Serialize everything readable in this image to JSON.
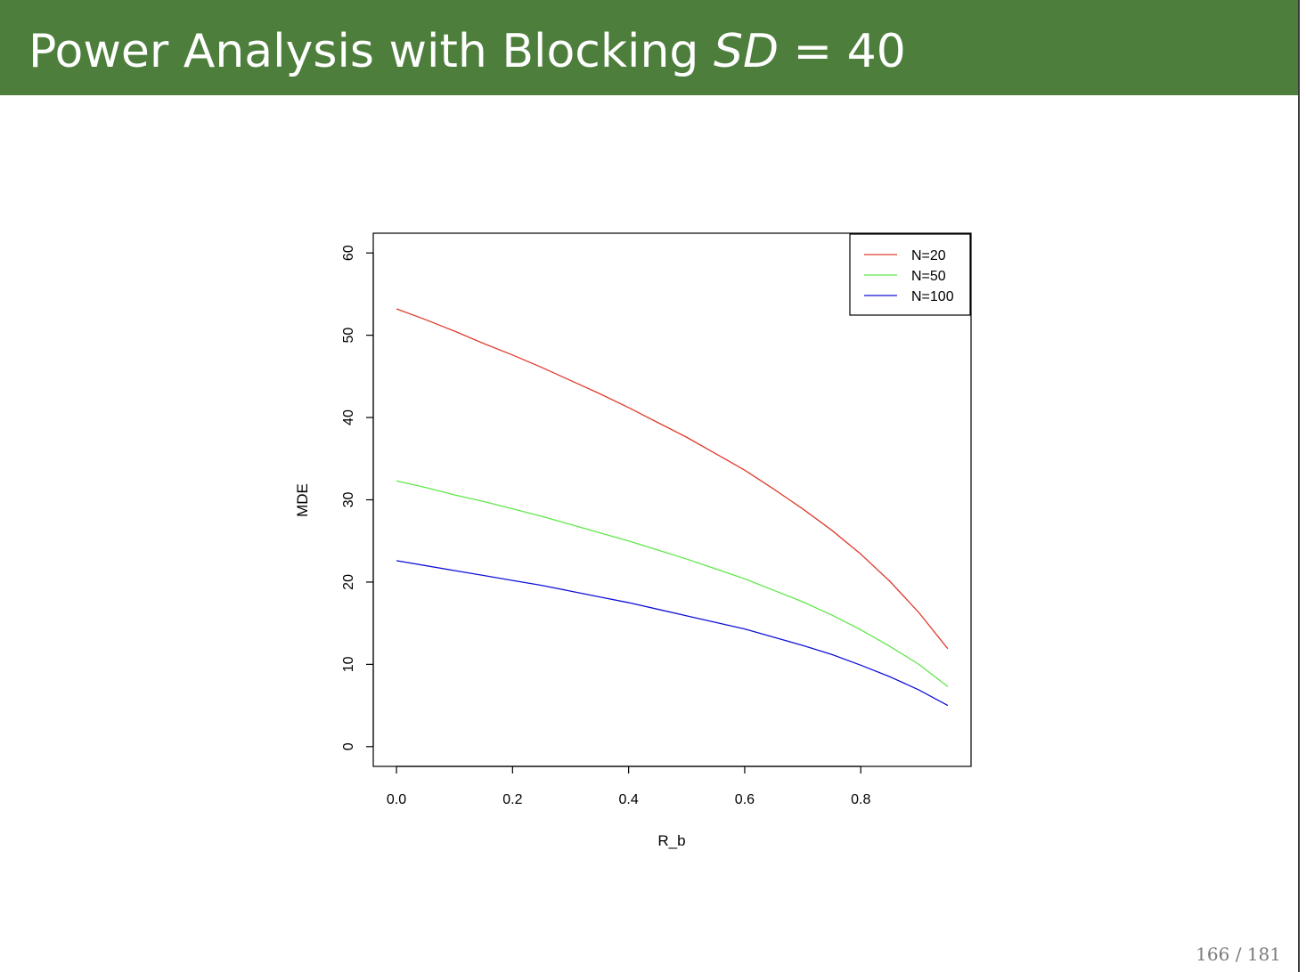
{
  "slide": {
    "title_prefix": "Power Analysis with Blocking ",
    "title_math": "SD",
    "title_suffix": " = 40",
    "page_current": "166",
    "page_separator": "/",
    "page_total": "181"
  },
  "chart_data": {
    "type": "line",
    "xlabel": "R_b",
    "ylabel": "MDE",
    "xlim": [
      -0.04,
      0.99
    ],
    "ylim": [
      -2.4,
      62.4
    ],
    "xticks": [
      0.0,
      0.2,
      0.4,
      0.6,
      0.8
    ],
    "xtick_labels": [
      "0.0",
      "0.2",
      "0.4",
      "0.6",
      "0.8"
    ],
    "yticks": [
      0,
      10,
      20,
      30,
      40,
      50,
      60
    ],
    "ytick_labels": [
      "0",
      "10",
      "20",
      "30",
      "40",
      "50",
      "60"
    ],
    "grid": false,
    "legend_position": "top-right",
    "x": [
      0,
      0.05,
      0.1,
      0.15,
      0.2,
      0.25,
      0.3,
      0.35,
      0.4,
      0.45,
      0.5,
      0.55,
      0.6,
      0.65,
      0.7,
      0.75,
      0.8,
      0.85,
      0.9,
      0.95
    ],
    "series": [
      {
        "name": "N=20",
        "color": "#df3a2e",
        "values": [
          53.2,
          51.9,
          50.5,
          49.0,
          47.6,
          46.1,
          44.5,
          42.9,
          41.2,
          39.4,
          37.6,
          35.6,
          33.6,
          31.3,
          28.9,
          26.3,
          23.4,
          20.1,
          16.3,
          11.9
        ]
      },
      {
        "name": "N=50",
        "color": "#5fe849",
        "values": [
          32.3,
          31.5,
          30.6,
          29.8,
          28.9,
          28.0,
          27.0,
          26.0,
          25.0,
          23.9,
          22.8,
          21.6,
          20.4,
          19.0,
          17.6,
          16.0,
          14.2,
          12.2,
          10.0,
          7.3
        ]
      },
      {
        "name": "N=100",
        "color": "#1010d8",
        "values": [
          22.6,
          22.0,
          21.4,
          20.8,
          20.2,
          19.6,
          18.9,
          18.2,
          17.5,
          16.7,
          15.9,
          15.1,
          14.3,
          13.3,
          12.3,
          11.2,
          9.9,
          8.5,
          6.9,
          5.0
        ]
      }
    ]
  }
}
